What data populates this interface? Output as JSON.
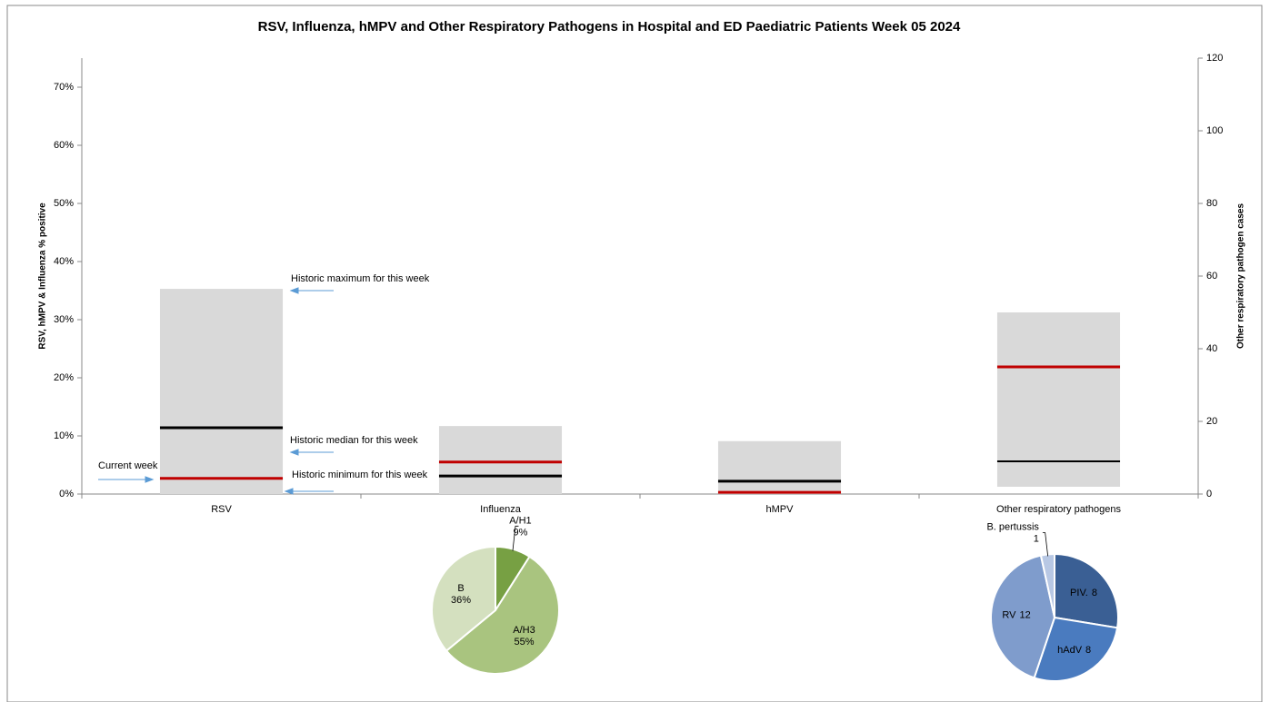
{
  "chart_data": [
    {
      "type": "range",
      "title": "RSV, Influenza, hMPV and Other Respiratory Pathogens in Hospital and ED Paediatric Patients Week 05 2024",
      "y_label": "RSV, hMPV & Influenza % positive",
      "y2_label": "Other respiratory pathogen cases",
      "categories": [
        "RSV",
        "Influenza",
        "hMPV",
        "Other respiratory pathogens"
      ],
      "axes": [
        "y",
        "y",
        "y",
        "y2"
      ],
      "range_color": "#d9d9d9",
      "series": [
        {
          "name": "Historic minimum for this week",
          "values": [
            0,
            0,
            0,
            2
          ]
        },
        {
          "name": "Historic maximum for this week",
          "values": [
            35.3,
            11.7,
            9.1,
            50
          ]
        },
        {
          "name": "Historic median for this week",
          "color": "#000000",
          "values": [
            11.4,
            3.1,
            2.2,
            9
          ]
        },
        {
          "name": "Current week",
          "color": "#c00000",
          "values": [
            2.7,
            5.5,
            0.3,
            35
          ]
        }
      ],
      "ylim": [
        0,
        75
      ],
      "yticks": [
        {
          "value": 0,
          "label": "0%"
        },
        {
          "value": 10,
          "label": "10%"
        },
        {
          "value": 20,
          "label": "20%"
        },
        {
          "value": 30,
          "label": "30%"
        },
        {
          "value": 40,
          "label": "40%"
        },
        {
          "value": 50,
          "label": "50%"
        },
        {
          "value": 60,
          "label": "60%"
        },
        {
          "value": 70,
          "label": "70%"
        }
      ],
      "y2lim": [
        0,
        120
      ],
      "y2ticks": [
        0,
        20,
        40,
        60,
        80,
        100,
        120
      ]
    },
    {
      "type": "pie",
      "categories": [
        "A/H1",
        "A/H3",
        "B"
      ],
      "values": [
        9,
        55,
        36
      ],
      "value_labels": [
        "9%",
        "55%",
        "36%"
      ],
      "colors": [
        "#77a043",
        "#a9c47f",
        "#d4e0bf"
      ]
    },
    {
      "type": "pie",
      "categories": [
        "PIV.",
        "hAdV",
        "RV",
        "B. pertussis"
      ],
      "values": [
        8,
        8,
        12,
        1
      ],
      "colors": [
        "#3a5f94",
        "#4a7bbf",
        "#7f9ccc",
        "#b8c8e4"
      ]
    }
  ]
}
